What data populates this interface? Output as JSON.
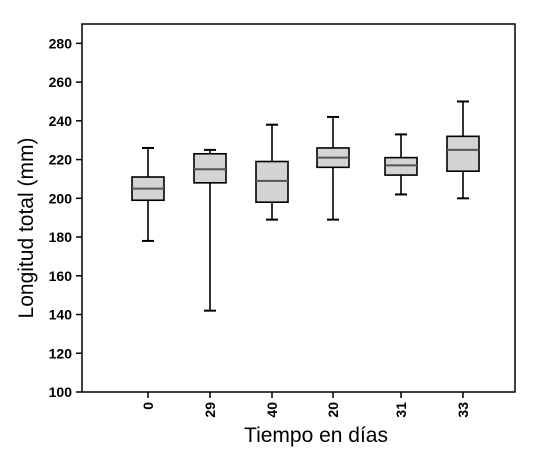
{
  "chart_data": {
    "type": "boxplot",
    "title": "",
    "xlabel": "Tiempo en días",
    "ylabel": "Longitud total (mm)",
    "ylim": [
      100,
      290
    ],
    "yticks": [
      "100",
      "120",
      "140",
      "160",
      "180",
      "200",
      "220",
      "240",
      "260",
      "280"
    ],
    "grid": false,
    "categories": [
      "0",
      "29",
      "40",
      "20",
      "31",
      "33"
    ],
    "series": [
      {
        "category": "0",
        "min": 178,
        "q1": 199,
        "median": 205,
        "q3": 211,
        "max": 226
      },
      {
        "category": "29",
        "min": 142,
        "q1": 208,
        "median": 215,
        "q3": 223,
        "max": 225
      },
      {
        "category": "40",
        "min": 189,
        "q1": 198,
        "median": 209,
        "q3": 219,
        "max": 238
      },
      {
        "category": "20",
        "min": 189,
        "q1": 216,
        "median": 221,
        "q3": 226,
        "max": 242
      },
      {
        "category": "31",
        "min": 202,
        "q1": 212,
        "median": 217,
        "q3": 221,
        "max": 233
      },
      {
        "category": "33",
        "min": 200,
        "q1": 214,
        "median": 225,
        "q3": 232,
        "max": 250
      }
    ],
    "colors": {
      "box_fill": "#d4d4d4",
      "stroke": "#000000",
      "median": "#555555"
    }
  }
}
